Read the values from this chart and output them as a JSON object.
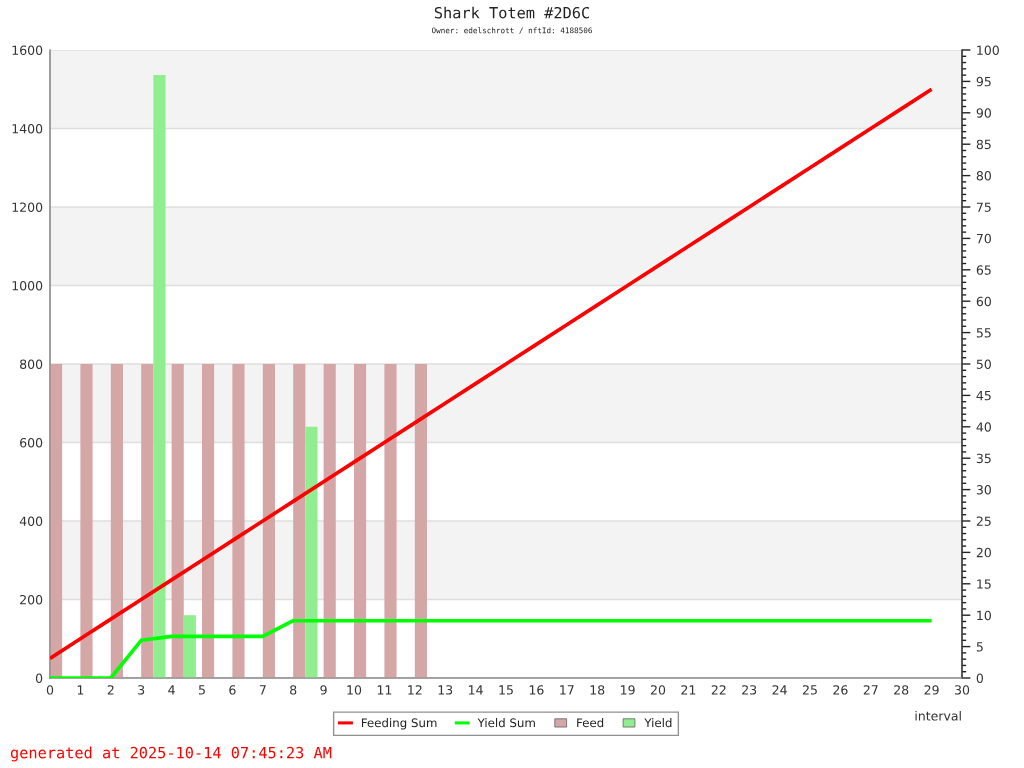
{
  "chart_data": {
    "type": "line",
    "title": "Shark Totem #2D6C",
    "subtitle": "Owner: edelschrott / nftId: 4188506",
    "xlabel": "interval",
    "annotations": [
      "generated at 2025-10-14 07:45:23 AM"
    ],
    "xlim": [
      0,
      30
    ],
    "xticks": [
      0,
      1,
      2,
      3,
      4,
      5,
      6,
      7,
      8,
      9,
      10,
      11,
      12,
      13,
      14,
      15,
      16,
      17,
      18,
      19,
      20,
      21,
      22,
      23,
      24,
      25,
      26,
      27,
      28,
      29,
      30
    ],
    "ylim": [
      0,
      1600
    ],
    "yticks": [
      0,
      200,
      400,
      600,
      800,
      1000,
      1200,
      1400,
      1600
    ],
    "y2lim": [
      0,
      100
    ],
    "y2ticks": [
      0,
      5,
      10,
      15,
      20,
      25,
      30,
      35,
      40,
      45,
      50,
      55,
      60,
      65,
      70,
      75,
      80,
      85,
      90,
      95,
      100
    ],
    "bands": [
      {
        "axis": "y",
        "from": 200,
        "to": 400,
        "color": "#f3f3f3"
      },
      {
        "axis": "y",
        "from": 600,
        "to": 800,
        "color": "#f3f3f3"
      },
      {
        "axis": "y",
        "from": 1000,
        "to": 1200,
        "color": "#f3f3f3"
      },
      {
        "axis": "y",
        "from": 1400,
        "to": 1600,
        "color": "#f3f3f3"
      }
    ],
    "grid": "y",
    "legend": "bottom",
    "series": [
      {
        "name": "Feeding Sum",
        "color": "#ff0000",
        "x": [
          0,
          1,
          2,
          3,
          4,
          5,
          6,
          7,
          8,
          9,
          10,
          11,
          12,
          13,
          14,
          15,
          16,
          17,
          18,
          19,
          20,
          21,
          22,
          23,
          24,
          25,
          26,
          27,
          28,
          29
        ],
        "values": [
          50,
          100,
          150,
          200,
          250,
          300,
          350,
          400,
          450,
          500,
          550,
          600,
          650,
          700,
          750,
          800,
          850,
          900,
          950,
          1000,
          1050,
          1100,
          1150,
          1200,
          1250,
          1300,
          1350,
          1400,
          1450,
          1500
        ]
      },
      {
        "name": "Yield Sum",
        "color": "#00ff00",
        "x": [
          0,
          1,
          2,
          3,
          4,
          5,
          6,
          7,
          8,
          9,
          10,
          11,
          12,
          13,
          14,
          15,
          16,
          17,
          18,
          19,
          20,
          21,
          22,
          23,
          24,
          25,
          26,
          27,
          28,
          29
        ],
        "values": [
          0,
          0,
          0,
          96,
          106,
          106,
          106,
          106,
          146,
          146,
          146,
          146,
          146,
          146,
          146,
          146,
          146,
          146,
          146,
          146,
          146,
          146,
          146,
          146,
          146,
          146,
          146,
          146,
          146,
          146
        ]
      },
      {
        "name": "Feed",
        "type": "bar",
        "axis": "y2",
        "color": "#d4a6a6",
        "x": [
          0.2,
          1.2,
          2.2,
          3.2,
          4.2,
          5.2,
          6.2,
          7.2,
          8.2,
          9.2,
          10.2,
          11.2,
          12.2
        ],
        "values": [
          50,
          50,
          50,
          50,
          50,
          50,
          50,
          50,
          50,
          50,
          50,
          50,
          50
        ]
      },
      {
        "name": "Yield",
        "type": "bar",
        "axis": "y2",
        "color": "#90ee90",
        "x": [
          3.6,
          4.6,
          8.6
        ],
        "values": [
          96,
          10,
          40
        ]
      }
    ]
  }
}
